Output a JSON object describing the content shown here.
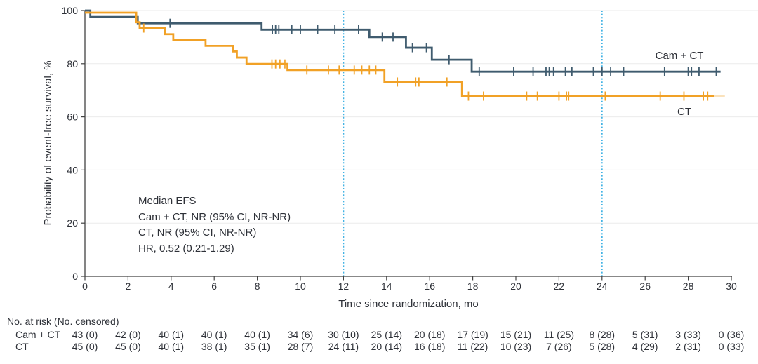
{
  "chart_data": {
    "type": "line",
    "subtype": "kaplan-meier-step",
    "title": "",
    "xlabel": "Time since randomization, mo",
    "ylabel": "Probability of event-free survival, %",
    "xlim": [
      0,
      30
    ],
    "ylim": [
      0,
      100
    ],
    "xticks": [
      0,
      2,
      4,
      6,
      8,
      10,
      12,
      14,
      16,
      18,
      20,
      22,
      24,
      26,
      28,
      30
    ],
    "yticks": [
      0,
      20,
      40,
      60,
      80,
      100
    ],
    "grid": "horizontal",
    "grid_color": "#ebebeb",
    "axis_color": "#424242",
    "reference_lines_x": [
      12,
      24
    ],
    "reference_line_color": "#41b2e4",
    "series": [
      {
        "name": "Cam + CT",
        "color": "#3f5b6e",
        "steps": [
          [
            0,
            100
          ],
          [
            0.25,
            97.6
          ],
          [
            2.45,
            95.2
          ],
          [
            8.2,
            92.8
          ],
          [
            13.2,
            90
          ],
          [
            14.9,
            86
          ],
          [
            16.1,
            81.5
          ],
          [
            17.95,
            77
          ]
        ],
        "end_x": 29.5,
        "censor_marks": [
          [
            3.95,
            95.2
          ],
          [
            8.7,
            92.8
          ],
          [
            8.85,
            92.8
          ],
          [
            9.0,
            92.8
          ],
          [
            9.6,
            92.8
          ],
          [
            10.0,
            92.8
          ],
          [
            10.8,
            92.8
          ],
          [
            11.6,
            92.8
          ],
          [
            12.7,
            92.8
          ],
          [
            13.8,
            90
          ],
          [
            14.3,
            90
          ],
          [
            15.2,
            86
          ],
          [
            15.85,
            86
          ],
          [
            16.9,
            81.5
          ],
          [
            18.3,
            77
          ],
          [
            19.9,
            77
          ],
          [
            20.8,
            77
          ],
          [
            21.4,
            77
          ],
          [
            21.55,
            77
          ],
          [
            21.75,
            77
          ],
          [
            22.3,
            77
          ],
          [
            22.6,
            77
          ],
          [
            23.6,
            77
          ],
          [
            24.0,
            77
          ],
          [
            24.4,
            77
          ],
          [
            25.0,
            77
          ],
          [
            26.9,
            77
          ],
          [
            28.0,
            77
          ],
          [
            28.15,
            77
          ],
          [
            28.5,
            77
          ],
          [
            29.3,
            77
          ]
        ]
      },
      {
        "name": "CT",
        "color": "#f1a126",
        "steps": [
          [
            0,
            100
          ],
          [
            2.38,
            95.6
          ],
          [
            2.54,
            93.4
          ],
          [
            3.7,
            91.1
          ],
          [
            4.1,
            88.9
          ],
          [
            5.6,
            86.7
          ],
          [
            6.87,
            84.6
          ],
          [
            7.05,
            82.3
          ],
          [
            7.5,
            79.9
          ],
          [
            9.4,
            77.6
          ],
          [
            13.9,
            73.1
          ],
          [
            17.5,
            67.8
          ]
        ],
        "end_x": 29.2,
        "fade_end_x": 29.7,
        "censor_marks": [
          [
            2.73,
            93.4
          ],
          [
            8.68,
            79.9
          ],
          [
            8.85,
            79.9
          ],
          [
            9.05,
            79.9
          ],
          [
            9.25,
            79.9
          ],
          [
            9.32,
            79.9
          ],
          [
            10.3,
            77.6
          ],
          [
            11.3,
            77.6
          ],
          [
            11.8,
            77.6
          ],
          [
            12.5,
            77.6
          ],
          [
            12.85,
            77.6
          ],
          [
            13.2,
            77.6
          ],
          [
            13.5,
            77.6
          ],
          [
            14.5,
            73.1
          ],
          [
            15.35,
            73.1
          ],
          [
            15.5,
            73.1
          ],
          [
            16.8,
            73.1
          ],
          [
            17.8,
            67.8
          ],
          [
            18.5,
            67.8
          ],
          [
            20.5,
            67.8
          ],
          [
            21.0,
            67.8
          ],
          [
            22.0,
            67.8
          ],
          [
            22.35,
            67.8
          ],
          [
            22.45,
            67.8
          ],
          [
            24.15,
            67.8
          ],
          [
            26.7,
            67.8
          ],
          [
            27.8,
            67.8
          ],
          [
            28.7,
            67.8
          ],
          [
            28.9,
            67.8
          ]
        ]
      }
    ],
    "annotation": {
      "lines": [
        "Median EFS",
        "Cam + CT, NR (95% CI, NR-NR)",
        "CT, NR (95% CI, NR-NR)",
        "HR, 0.52 (0.21-1.29)"
      ]
    },
    "legend": {
      "cam_ct_label": "Cam + CT",
      "ct_label": "CT"
    }
  },
  "risk_table": {
    "title": "No. at risk (No. censored)",
    "time_points": [
      0,
      2,
      4,
      6,
      8,
      10,
      12,
      14,
      16,
      18,
      20,
      22,
      24,
      26,
      28,
      30
    ],
    "rows": [
      {
        "label": "Cam + CT",
        "values": [
          "43 (0)",
          "42 (0)",
          "40 (1)",
          "40 (1)",
          "40 (1)",
          "34 (6)",
          "30 (10)",
          "25 (14)",
          "20 (18)",
          "17 (19)",
          "15 (21)",
          "11 (25)",
          "8 (28)",
          "5 (31)",
          "3 (33)",
          "0 (36)"
        ]
      },
      {
        "label": "CT",
        "values": [
          "45 (0)",
          "45 (0)",
          "40 (1)",
          "38 (1)",
          "35 (1)",
          "28 (7)",
          "24 (11)",
          "20 (14)",
          "16 (18)",
          "11 (22)",
          "10 (23)",
          "7 (26)",
          "5 (28)",
          "4 (29)",
          "2 (31)",
          "0 (33)"
        ]
      }
    ]
  }
}
